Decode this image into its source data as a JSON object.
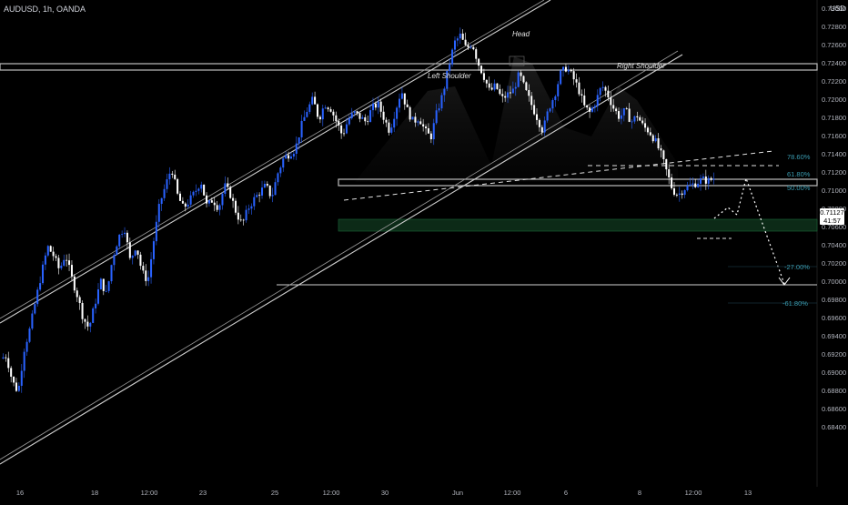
{
  "header": {
    "symbol_label": "AUDUSD, 1h, OANDA",
    "currency": "USD"
  },
  "last_price": {
    "value": "0.71127",
    "countdown": "41:57"
  },
  "annotations": {
    "head": "Head",
    "left_shoulder": "Left Shoulder",
    "right_shoulder": "Right Shoulder"
  },
  "fibonacci": {
    "levels": [
      {
        "label": "78.60%",
        "price": 0.7175
      },
      {
        "label": "61.80%",
        "price": 0.7155
      },
      {
        "label": "50.00%",
        "price": 0.7142
      },
      {
        "label": "-27.00%",
        "price": 0.7056
      },
      {
        "label": "-61.80%",
        "price": 0.7017
      }
    ]
  },
  "colors": {
    "background": "#000000",
    "candle_up": "#2962ff",
    "candle_down": "#ffffff",
    "fib_label": "#3a9bb0",
    "green_zone": "#1a4d2e"
  },
  "chart_data": {
    "type": "candlestick",
    "symbol": "AUDUSD",
    "timeframe": "1h",
    "ylim": [
      0.6838,
      0.735
    ],
    "y_ticks": [
      "0.73000",
      "0.72800",
      "0.72600",
      "0.72400",
      "0.72200",
      "0.72000",
      "0.71800",
      "0.71600",
      "0.71400",
      "0.71200",
      "0.71000",
      "0.70800",
      "0.70600",
      "0.70400",
      "0.70200",
      "0.70000",
      "0.69800",
      "0.69600",
      "0.69400",
      "0.69200",
      "0.69000",
      "0.68800",
      "0.68600",
      "0.68400"
    ],
    "x_ticks": [
      "16",
      "18",
      "12:00",
      "23",
      "25",
      "12:00",
      "30",
      "Jun",
      "12:00",
      "6",
      "8",
      "12:00",
      "13"
    ],
    "price_path": [
      [
        0.6915,
        0.6918
      ],
      [
        0.689,
        0.6878
      ],
      [
        0.6925,
        0.6948
      ],
      [
        0.698,
        0.701
      ],
      [
        0.7038,
        0.7028
      ],
      [
        0.7012,
        0.703
      ],
      [
        0.7005,
        0.6985
      ],
      [
        0.696,
        0.6948
      ],
      [
        0.6975,
        0.7
      ],
      [
        0.6985,
        0.7025
      ],
      [
        0.7048,
        0.706
      ],
      [
        0.7022,
        0.704
      ],
      [
        0.701,
        0.7
      ],
      [
        0.7045,
        0.7085
      ],
      [
        0.7105,
        0.7125
      ],
      [
        0.7095,
        0.708
      ],
      [
        0.7088,
        0.7098
      ],
      [
        0.711,
        0.7082
      ],
      [
        0.709,
        0.708
      ],
      [
        0.7105,
        0.7095
      ],
      [
        0.7075,
        0.7062
      ],
      [
        0.708,
        0.709
      ],
      [
        0.7098,
        0.7105
      ],
      [
        0.7092,
        0.7118
      ],
      [
        0.7135,
        0.714
      ],
      [
        0.7145,
        0.717
      ],
      [
        0.7188,
        0.72
      ],
      [
        0.7178,
        0.7195
      ],
      [
        0.719,
        0.7175
      ],
      [
        0.716,
        0.7178
      ],
      [
        0.7185,
        0.718
      ],
      [
        0.7175,
        0.719
      ],
      [
        0.7195,
        0.718
      ],
      [
        0.7165,
        0.7188
      ],
      [
        0.721,
        0.7188
      ],
      [
        0.7175,
        0.718
      ],
      [
        0.7165,
        0.7158
      ],
      [
        0.7185,
        0.7205
      ],
      [
        0.7235,
        0.7262
      ],
      [
        0.727,
        0.7255
      ],
      [
        0.7262,
        0.724
      ],
      [
        0.7225,
        0.7208
      ],
      [
        0.7215,
        0.72
      ],
      [
        0.7205,
        0.721
      ],
      [
        0.7228,
        0.721
      ],
      [
        0.7195,
        0.718
      ],
      [
        0.7165,
        0.719
      ],
      [
        0.7205,
        0.7228
      ],
      [
        0.7235,
        0.7225
      ],
      [
        0.7212,
        0.7192
      ],
      [
        0.7185,
        0.7198
      ],
      [
        0.7215,
        0.7205
      ],
      [
        0.719,
        0.718
      ],
      [
        0.7188,
        0.7175
      ],
      [
        0.7182,
        0.717
      ],
      [
        0.7165,
        0.7155
      ],
      [
        0.714,
        0.712
      ],
      [
        0.71,
        0.7095
      ],
      [
        0.7102,
        0.7105
      ],
      [
        0.7108,
        0.7112
      ],
      [
        0.711,
        0.7113
      ]
    ],
    "levels": {
      "head_high": 0.7265,
      "neckline": 0.7145,
      "right_shoulder_zone": 0.7143,
      "support": 0.704,
      "green_zone": [
        0.7095,
        0.7108
      ],
      "projected_target": 0.704
    },
    "projection": [
      0.7113,
      0.712,
      0.7115,
      0.7145,
      0.704
    ]
  }
}
